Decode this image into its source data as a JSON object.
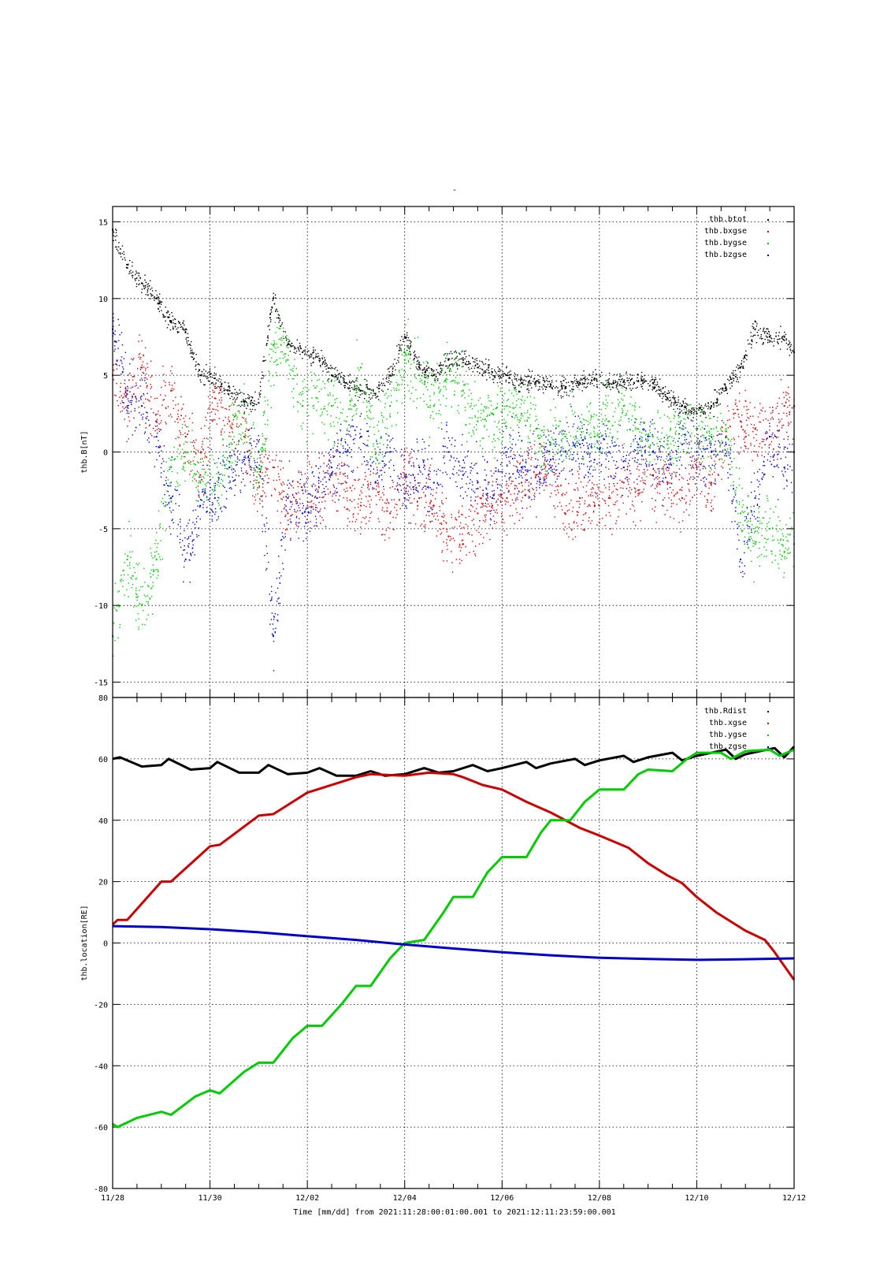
{
  "figure": {
    "top_mark": "-",
    "time_axis": {
      "xlabel": "Time [mm/dd]  from 2021:11:28:00:01:00.001  to  2021:12:11:23:59:00.001",
      "tick_labels": [
        "11/28",
        "11/30",
        "12/02",
        "12/04",
        "12/06",
        "12/08",
        "12/10",
        "12/12"
      ]
    }
  },
  "chart_data": [
    {
      "type": "scatter",
      "ylabel": "thb.B[nT]",
      "xlim": [
        0,
        14
      ],
      "ylim": [
        -16,
        16
      ],
      "yticks": [
        -15,
        -10,
        -5,
        0,
        5,
        10,
        15
      ],
      "grid": true,
      "legend_position": "top-right",
      "series": [
        {
          "name": "thb.btot",
          "color": "#000000",
          "x": [
            0,
            0.3,
            0.6,
            0.9,
            1.2,
            1.5,
            1.8,
            2.1,
            2.4,
            2.7,
            3.0,
            3.3,
            3.6,
            3.9,
            4.2,
            4.5,
            4.8,
            5.1,
            5.4,
            5.7,
            6.0,
            6.3,
            6.6,
            6.9,
            7.2,
            7.5,
            7.8,
            8.1,
            8.4,
            8.7,
            9.0,
            9.3,
            9.6,
            9.9,
            10.2,
            10.5,
            10.8,
            11.1,
            11.4,
            11.7,
            12.0,
            12.3,
            12.6,
            12.9,
            13.2,
            13.5,
            13.8,
            14.0
          ],
          "y": [
            14.5,
            12,
            11,
            10,
            8.5,
            8,
            5,
            4.8,
            4,
            3.3,
            3.2,
            10,
            7,
            6.5,
            6.2,
            5,
            4.5,
            4,
            3.8,
            5,
            7.5,
            5.5,
            5,
            6,
            6,
            5.5,
            5.2,
            5,
            4.5,
            4.6,
            4.4,
            4.2,
            4.5,
            4.8,
            4.4,
            4.6,
            4.6,
            4.5,
            3.5,
            3,
            2.5,
            3,
            4.2,
            5.5,
            8,
            7.5,
            7.5,
            6.5
          ]
        },
        {
          "name": "thb.bxgse",
          "color": "#dd0000",
          "x": [
            0,
            0.3,
            0.6,
            0.9,
            1.2,
            1.5,
            1.8,
            2.1,
            2.4,
            2.7,
            3.0,
            3.3,
            3.6,
            3.9,
            4.2,
            4.5,
            4.8,
            5.1,
            5.4,
            5.7,
            6.0,
            6.3,
            6.6,
            6.9,
            7.2,
            7.5,
            7.8,
            8.1,
            8.4,
            8.7,
            9.0,
            9.3,
            9.6,
            9.9,
            10.2,
            10.5,
            10.8,
            11.1,
            11.4,
            11.7,
            12.0,
            12.3,
            12.6,
            12.9,
            13.2,
            13.5,
            13.8,
            14.0
          ],
          "y": [
            5,
            3,
            5.5,
            2,
            4,
            1,
            -1.5,
            3.5,
            2,
            1,
            -2,
            -1,
            -4,
            -2.5,
            -3,
            -1.5,
            -2,
            -3.5,
            -2,
            -4,
            -1.5,
            -3,
            -3.5,
            -5.5,
            -6,
            -4,
            -3.5,
            -3,
            -2,
            -1.5,
            -1,
            -4,
            -3,
            -3.5,
            -3,
            -2,
            -2.5,
            -1.5,
            -2,
            -3,
            -1,
            -2,
            1,
            2,
            1.5,
            1,
            3,
            3
          ]
        },
        {
          "name": "thb.bygse",
          "color": "#00cc00",
          "x": [
            0,
            0.3,
            0.6,
            0.9,
            1.2,
            1.5,
            1.8,
            2.1,
            2.4,
            2.7,
            3.0,
            3.3,
            3.6,
            3.9,
            4.2,
            4.5,
            4.8,
            5.1,
            5.4,
            5.7,
            6.0,
            6.3,
            6.6,
            6.9,
            7.2,
            7.5,
            7.8,
            8.1,
            8.4,
            8.7,
            9.0,
            9.3,
            9.6,
            9.9,
            10.2,
            10.5,
            10.8,
            11.1,
            11.4,
            11.7,
            12.0,
            12.3,
            12.6,
            12.9,
            13.2,
            13.5,
            13.8,
            14.0
          ],
          "y": [
            -12,
            -7,
            -10,
            -7,
            -1,
            0,
            -2,
            -2.5,
            0.5,
            2.5,
            -2,
            7,
            6,
            3,
            3.5,
            3,
            2,
            5.5,
            0,
            3,
            6,
            5,
            3,
            5.5,
            4,
            2,
            2.5,
            3,
            2.5,
            1.5,
            0.5,
            1,
            1.5,
            1,
            2,
            3,
            1.5,
            1,
            0.5,
            1.5,
            1.5,
            1,
            1.5,
            -4,
            -6,
            -5,
            -6.5,
            -6
          ]
        },
        {
          "name": "thb.bzgse",
          "color": "#0000dd",
          "x": [
            0,
            0.3,
            0.6,
            0.9,
            1.2,
            1.5,
            1.8,
            2.1,
            2.4,
            2.7,
            3.0,
            3.3,
            3.6,
            3.9,
            4.2,
            4.5,
            4.8,
            5.1,
            5.4,
            5.7,
            6.0,
            6.3,
            6.6,
            6.9,
            7.2,
            7.5,
            7.8,
            8.1,
            8.4,
            8.7,
            9.0,
            9.3,
            9.6,
            9.9,
            10.2,
            10.5,
            10.8,
            11.1,
            11.4,
            11.7,
            12.0,
            12.3,
            12.6,
            12.9,
            13.2,
            13.5,
            13.8,
            14.0
          ],
          "y": [
            8,
            4,
            3,
            1,
            -3,
            -7,
            -3.5,
            -3,
            -1,
            -0.5,
            0,
            -12,
            -3,
            -4,
            -3,
            -1,
            0,
            1,
            -2,
            0,
            -3,
            -1,
            -2,
            0,
            -1.5,
            -2,
            -3,
            0,
            -1,
            -1,
            -0.5,
            0,
            0.5,
            -0.5,
            0,
            -1,
            0.5,
            0,
            -1,
            0.5,
            0,
            0,
            0.5,
            -7,
            -3,
            1,
            -1,
            0
          ]
        }
      ]
    },
    {
      "type": "line",
      "ylabel": "thb.location[RE]",
      "xlim": [
        0,
        14
      ],
      "ylim": [
        -80,
        80
      ],
      "yticks": [
        -80,
        -60,
        -40,
        -20,
        0,
        20,
        40,
        60,
        80
      ],
      "grid": true,
      "legend_position": "top-right",
      "series": [
        {
          "name": "thb.Rdist",
          "color": "#000000",
          "x": [
            0,
            0.15,
            0.6,
            1.0,
            1.15,
            1.6,
            2.0,
            2.15,
            2.6,
            3.0,
            3.2,
            3.6,
            4.0,
            4.25,
            4.6,
            5.0,
            5.3,
            5.6,
            6.0,
            6.4,
            6.7,
            7.0,
            7.4,
            7.7,
            8.0,
            8.5,
            8.7,
            9.0,
            9.5,
            9.7,
            10.0,
            10.5,
            10.7,
            11.0,
            11.5,
            11.7,
            12.0,
            12.6,
            12.8,
            13.0,
            13.6,
            13.8,
            14.0
          ],
          "y": [
            60,
            60.5,
            57.5,
            58,
            60,
            56.5,
            57,
            59,
            55.5,
            55.5,
            58,
            55,
            55.5,
            57,
            54.5,
            54.5,
            56,
            54.5,
            55,
            57,
            55.5,
            56,
            58,
            56,
            57,
            59,
            57,
            58.5,
            60,
            58,
            59.5,
            61,
            59,
            60.5,
            62,
            59.5,
            61,
            63,
            60,
            61.5,
            63.5,
            60.5,
            64
          ]
        },
        {
          "name": "thb.xgse",
          "color": "#cc0000",
          "x": [
            0,
            0.1,
            0.3,
            1.0,
            1.2,
            2.0,
            2.2,
            3.0,
            3.3,
            4.0,
            4.2,
            5.0,
            5.3,
            6.0,
            6.5,
            7.0,
            7.2,
            7.6,
            8.0,
            8.5,
            9.0,
            9.6,
            10.0,
            10.6,
            11.0,
            11.4,
            11.7,
            12.0,
            12.4,
            13.0,
            13.4,
            13.6,
            14.0
          ],
          "y": [
            6,
            7.5,
            7.5,
            20,
            20,
            31.5,
            32,
            41.5,
            42,
            49,
            50,
            54,
            55,
            54.5,
            55.5,
            55,
            54,
            51.5,
            50,
            46,
            42.5,
            37.5,
            35,
            31,
            26,
            22,
            19.5,
            15,
            10,
            4,
            1,
            -3,
            -12
          ]
        },
        {
          "name": "thb.ygse",
          "color": "#00cc00",
          "x": [
            0,
            0.1,
            0.5,
            1.0,
            1.2,
            1.7,
            2.0,
            2.2,
            2.7,
            3.0,
            3.3,
            3.7,
            4.0,
            4.3,
            4.7,
            5.0,
            5.3,
            5.7,
            6.0,
            6.4,
            6.8,
            7.0,
            7.4,
            7.7,
            8.0,
            8.5,
            8.8,
            9.0,
            9.4,
            9.7,
            10.0,
            10.5,
            10.8,
            11.0,
            11.5,
            11.8,
            12.0,
            12.5,
            12.7,
            13.0,
            13.5,
            13.7,
            14.0
          ],
          "y": [
            -59,
            -60,
            -57,
            -55,
            -56,
            -50,
            -48,
            -49,
            -42,
            -39,
            -39,
            -31,
            -27,
            -27,
            -20,
            -14,
            -14,
            -5,
            0,
            1,
            10,
            15,
            15,
            23,
            28,
            28,
            36,
            40,
            40,
            46,
            50,
            50,
            55,
            56.5,
            56,
            60,
            62,
            62,
            60,
            62.5,
            63,
            61,
            63
          ]
        },
        {
          "name": "thb.zgse",
          "color": "#0000cc",
          "x": [
            0,
            1,
            2,
            3,
            4,
            5,
            6,
            7,
            8,
            9,
            10,
            11,
            12,
            13,
            14
          ],
          "y": [
            5.5,
            5.2,
            4.5,
            3.5,
            2.2,
            1,
            -0.5,
            -1.8,
            -3,
            -4,
            -4.8,
            -5.2,
            -5.5,
            -5.3,
            -5
          ]
        }
      ]
    }
  ]
}
